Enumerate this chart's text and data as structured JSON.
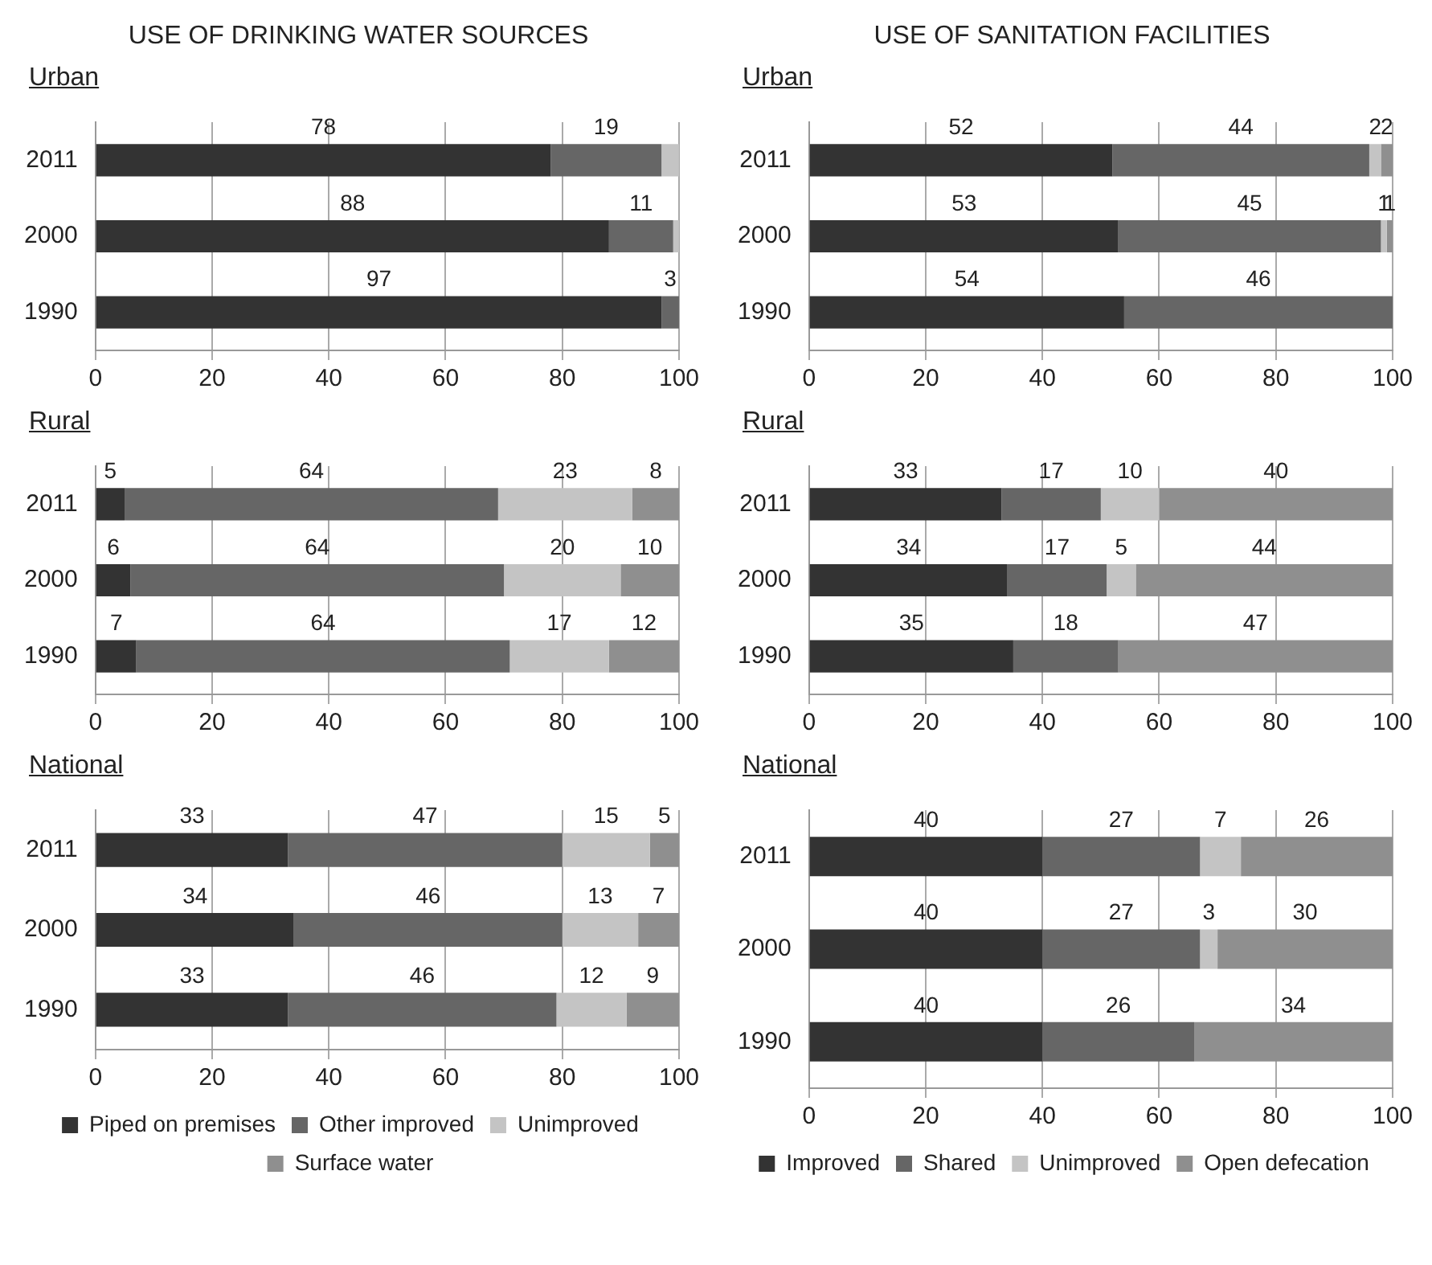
{
  "chart_data": [
    {
      "type": "bar",
      "title": "USE OF DRINKING WATER SOURCES",
      "subtitle": "Urban",
      "orientation": "horizontal",
      "stacked": true,
      "categories": [
        "2011",
        "2000",
        "1990"
      ],
      "xlim": [
        0,
        100
      ],
      "xticks": [
        0,
        20,
        40,
        60,
        80,
        100
      ],
      "grid": "x",
      "data_labels": true,
      "series": [
        {
          "color": "#333333",
          "values": [
            78,
            88,
            97
          ]
        },
        {
          "color": "#666666",
          "values": [
            19,
            11,
            3
          ]
        },
        {
          "color": "#c4c4c4",
          "values": [
            3,
            1,
            null
          ],
          "value_labels": [
            null,
            null,
            null
          ]
        }
      ]
    },
    {
      "type": "bar",
      "title": "USE OF SANITATION FACILITIES",
      "subtitle": "Urban",
      "orientation": "horizontal",
      "stacked": true,
      "categories": [
        "2011",
        "2000",
        "1990"
      ],
      "xlim": [
        0,
        100
      ],
      "xticks": [
        0,
        20,
        40,
        60,
        80,
        100
      ],
      "grid": "x",
      "data_labels": true,
      "series": [
        {
          "color": "#333333",
          "values": [
            52,
            53,
            54
          ]
        },
        {
          "color": "#666666",
          "values": [
            44,
            45,
            46
          ]
        },
        {
          "color": "#c4c4c4",
          "values": [
            2,
            1,
            null
          ]
        },
        {
          "color": "#8f8f8f",
          "values": [
            2,
            1,
            null
          ]
        }
      ]
    },
    {
      "type": "bar",
      "subtitle": "Rural",
      "orientation": "horizontal",
      "stacked": true,
      "categories": [
        "2011",
        "2000",
        "1990"
      ],
      "xlim": [
        0,
        100
      ],
      "xticks": [
        0,
        20,
        40,
        60,
        80,
        100
      ],
      "grid": "x",
      "data_labels": true,
      "series": [
        {
          "color": "#333333",
          "values": [
            5,
            6,
            7
          ]
        },
        {
          "color": "#666666",
          "values": [
            64,
            64,
            64
          ]
        },
        {
          "color": "#c4c4c4",
          "values": [
            23,
            20,
            17
          ]
        },
        {
          "color": "#8f8f8f",
          "values": [
            8,
            10,
            12
          ]
        }
      ]
    },
    {
      "type": "bar",
      "subtitle": "Rural",
      "orientation": "horizontal",
      "stacked": true,
      "categories": [
        "2011",
        "2000",
        "1990"
      ],
      "xlim": [
        0,
        100
      ],
      "xticks": [
        0,
        20,
        40,
        60,
        80,
        100
      ],
      "grid": "x",
      "data_labels": true,
      "series": [
        {
          "color": "#333333",
          "values": [
            33,
            34,
            35
          ]
        },
        {
          "color": "#666666",
          "values": [
            17,
            17,
            18
          ]
        },
        {
          "color": "#c4c4c4",
          "values": [
            10,
            5,
            null
          ]
        },
        {
          "color": "#8f8f8f",
          "values": [
            40,
            44,
            47
          ]
        }
      ]
    },
    {
      "type": "bar",
      "subtitle": "National",
      "orientation": "horizontal",
      "stacked": true,
      "categories": [
        "2011",
        "2000",
        "1990"
      ],
      "xlim": [
        0,
        100
      ],
      "xticks": [
        0,
        20,
        40,
        60,
        80,
        100
      ],
      "grid": "x",
      "data_labels": true,
      "legend": "bottom",
      "series": [
        {
          "name": "Piped on premises",
          "color": "#333333",
          "values": [
            33,
            34,
            33
          ]
        },
        {
          "name": "Other improved",
          "color": "#666666",
          "values": [
            47,
            46,
            46
          ]
        },
        {
          "name": "Unimproved",
          "color": "#c4c4c4",
          "values": [
            15,
            13,
            12
          ]
        },
        {
          "name": "Surface water",
          "color": "#8f8f8f",
          "values": [
            5,
            7,
            9
          ]
        }
      ]
    },
    {
      "type": "bar",
      "subtitle": "National",
      "orientation": "horizontal",
      "stacked": true,
      "categories": [
        "2011",
        "2000",
        "1990"
      ],
      "xlim": [
        0,
        100
      ],
      "xticks": [
        0,
        20,
        40,
        60,
        80,
        100
      ],
      "grid": "x",
      "data_labels": true,
      "legend": "bottom",
      "series": [
        {
          "name": "Improved",
          "color": "#333333",
          "values": [
            40,
            40,
            40
          ]
        },
        {
          "name": "Shared",
          "color": "#666666",
          "values": [
            27,
            27,
            26
          ]
        },
        {
          "name": "Unimproved",
          "color": "#c4c4c4",
          "values": [
            7,
            3,
            null
          ]
        },
        {
          "name": "Open defecation",
          "color": "#8f8f8f",
          "values": [
            26,
            30,
            34
          ]
        }
      ]
    }
  ]
}
